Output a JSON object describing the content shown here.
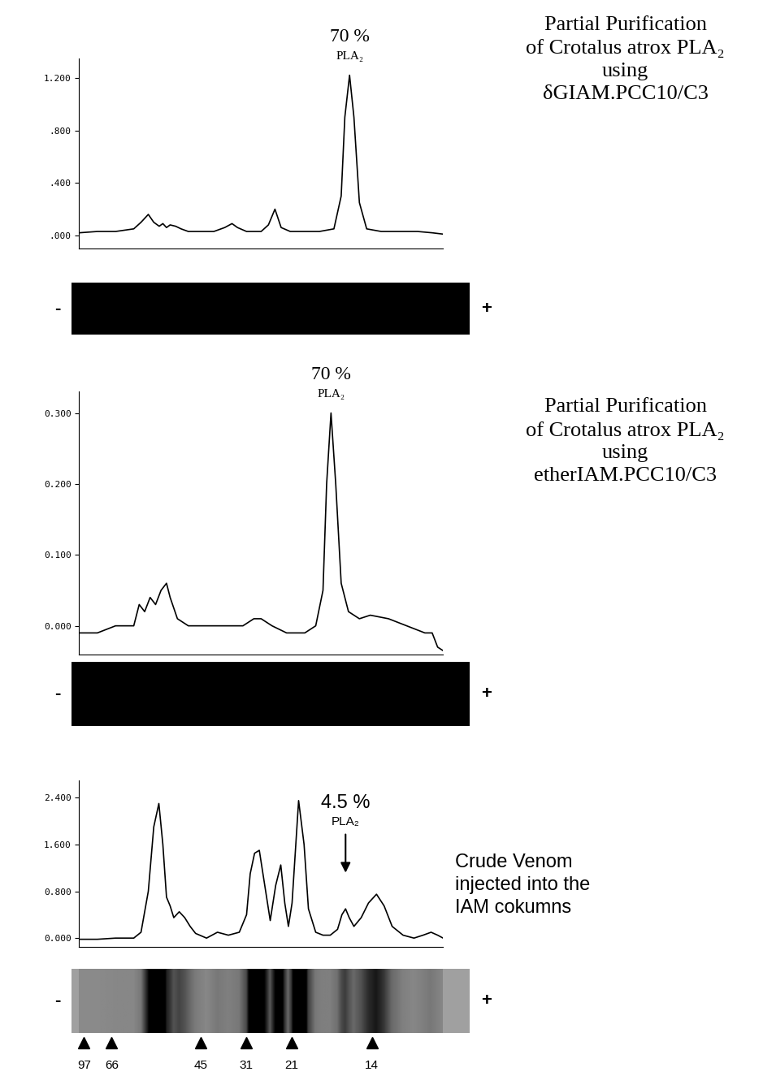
{
  "chart_data": [
    {
      "type": "line",
      "title": "Partial Purification\nof Crotalus atrox PLA₂\nusing\nδGIAM.PCC10/C3",
      "x": [
        0,
        5,
        10,
        15,
        17,
        19,
        20.5,
        22,
        23,
        24,
        25,
        26.5,
        28,
        30,
        33,
        37,
        40,
        42,
        43.5,
        46,
        50,
        52,
        53.8,
        55.5,
        58,
        62,
        66,
        70,
        72,
        73,
        74.3,
        75.5,
        77,
        79,
        83,
        88,
        93,
        97,
        100
      ],
      "values": [
        0.02,
        0.03,
        0.03,
        0.05,
        0.1,
        0.16,
        0.1,
        0.07,
        0.09,
        0.06,
        0.08,
        0.07,
        0.05,
        0.03,
        0.03,
        0.03,
        0.06,
        0.09,
        0.06,
        0.03,
        0.03,
        0.08,
        0.2,
        0.06,
        0.03,
        0.03,
        0.03,
        0.05,
        0.3,
        0.9,
        1.22,
        0.9,
        0.25,
        0.05,
        0.03,
        0.03,
        0.03,
        0.02,
        0.01
      ],
      "color": "#000000",
      "xlim": [
        0,
        100
      ],
      "ylim": [
        -0.1,
        1.35
      ],
      "yticks": [
        {
          "value": 0,
          "label": ".000"
        },
        {
          "value": 0.4,
          "label": ".400"
        },
        {
          "value": 0.8,
          "label": ".800"
        },
        {
          "value": 1.2,
          "label": "1.200"
        }
      ],
      "tick_labels": "y",
      "annotation": {
        "lines": [
          "70 %",
          "PLA₂"
        ],
        "x": 74.3,
        "y": 1.22,
        "arrow": false
      },
      "gel": {
        "labels": [
          "-",
          "+"
        ],
        "color": "#000000"
      }
    },
    {
      "type": "line",
      "title": "Partial Purification\nof Crotalus atrox PLA₂\nusing\netherIAM.PCC10/C3",
      "x": [
        0,
        5,
        10,
        15,
        16.5,
        18,
        19.5,
        21,
        22.5,
        24,
        25,
        27,
        30,
        35,
        40,
        45,
        48,
        50,
        53,
        57,
        62,
        65,
        67,
        68,
        69.2,
        70.5,
        72,
        74,
        77,
        80,
        85,
        90,
        95,
        97,
        98.5,
        100
      ],
      "values": [
        -0.01,
        -0.01,
        0.0,
        0.0,
        0.03,
        0.02,
        0.04,
        0.03,
        0.05,
        0.06,
        0.04,
        0.01,
        0.0,
        0.0,
        0.0,
        0.0,
        0.01,
        0.01,
        0.0,
        -0.01,
        -0.01,
        0.0,
        0.05,
        0.2,
        0.3,
        0.2,
        0.06,
        0.02,
        0.01,
        0.015,
        0.01,
        0.0,
        -0.01,
        -0.01,
        -0.03,
        -0.035
      ],
      "color": "#000000",
      "xlim": [
        0,
        100
      ],
      "ylim": [
        -0.04,
        0.33
      ],
      "yticks": [
        {
          "value": 0,
          "label": "0.000"
        },
        {
          "value": 0.1,
          "label": "0.100"
        },
        {
          "value": 0.2,
          "label": "0.200"
        },
        {
          "value": 0.3,
          "label": "0.300"
        }
      ],
      "tick_labels": "y",
      "annotation": {
        "lines": [
          "70 %",
          "PLA₂"
        ],
        "x": 69.2,
        "y": 0.3,
        "arrow": false
      },
      "gel": {
        "labels": [
          "-",
          "+"
        ],
        "color": "#000000"
      }
    },
    {
      "type": "line",
      "title": "Crude Venom\ninjected into the\nIAM cokumns",
      "x": [
        0,
        5,
        10,
        15,
        17,
        19,
        20.5,
        21.9,
        23,
        24,
        25,
        26,
        27.5,
        29,
        30.5,
        32,
        35,
        38,
        41,
        44,
        46,
        47,
        48.2,
        49.5,
        51,
        52.5,
        54,
        55.4,
        56.5,
        57.5,
        58.5,
        60.3,
        61.8,
        63,
        65,
        67,
        69,
        71,
        72.2,
        73.2,
        74.2,
        75.5,
        77.5,
        79.5,
        81.7,
        83.8,
        86,
        89,
        92,
        94.5,
        96.7,
        98.5,
        100
      ],
      "values": [
        -0.02,
        -0.02,
        0.0,
        0.0,
        0.1,
        0.8,
        1.9,
        2.3,
        1.6,
        0.7,
        0.55,
        0.35,
        0.45,
        0.35,
        0.2,
        0.08,
        0.0,
        0.1,
        0.05,
        0.1,
        0.4,
        1.1,
        1.45,
        1.5,
        0.9,
        0.3,
        0.9,
        1.25,
        0.6,
        0.2,
        0.6,
        2.35,
        1.6,
        0.5,
        0.1,
        0.05,
        0.05,
        0.15,
        0.4,
        0.5,
        0.35,
        0.2,
        0.35,
        0.6,
        0.75,
        0.55,
        0.2,
        0.05,
        0.0,
        0.05,
        0.1,
        0.05,
        0.0
      ],
      "color": "#000000",
      "xlim": [
        0,
        100
      ],
      "ylim": [
        -0.15,
        2.7
      ],
      "yticks": [
        {
          "value": 0,
          "label": "0.000"
        },
        {
          "value": 0.8,
          "label": "0.800"
        },
        {
          "value": 1.6,
          "label": "1.600"
        },
        {
          "value": 2.4,
          "label": "2.400"
        }
      ],
      "tick_labels": "y",
      "annotation": {
        "lines": [
          "4.5 %",
          "PLA₂"
        ],
        "x": 73.2,
        "y": 0.5,
        "arrow": true
      },
      "gel": {
        "labels": [
          "-",
          "+"
        ],
        "color": "#a0a0a0"
      },
      "mw_markers": {
        "x": [
          1.3,
          8.9,
          33.5,
          46.0,
          58.3,
          80.4
        ],
        "values": [
          97,
          66,
          45,
          31,
          21,
          14
        ]
      }
    }
  ]
}
